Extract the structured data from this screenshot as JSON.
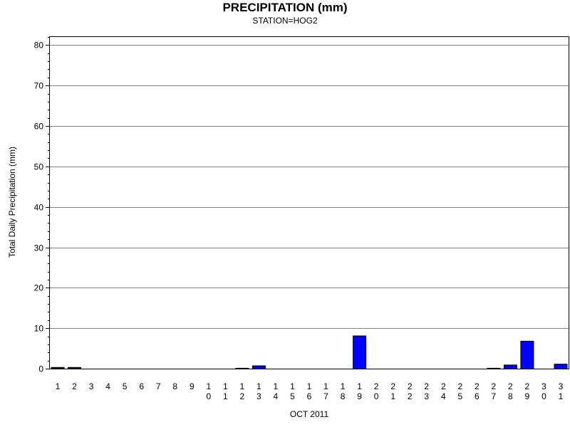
{
  "chart_data": {
    "type": "bar",
    "title": "PRECIPITATION (mm)",
    "subtitle": "STATION=HOG2",
    "xlabel": "OCT 2011",
    "ylabel": "Total Daily Precipitation (mm)",
    "ylim": [
      0,
      82
    ],
    "yticks": [
      0,
      10,
      20,
      30,
      40,
      50,
      60,
      70,
      80
    ],
    "grid": true,
    "bar_color": "#0000ff",
    "categories": [
      "1",
      "2",
      "3",
      "4",
      "5",
      "6",
      "7",
      "8",
      "9",
      "10",
      "11",
      "12",
      "13",
      "14",
      "15",
      "16",
      "17",
      "18",
      "19",
      "20",
      "21",
      "22",
      "23",
      "24",
      "25",
      "26",
      "27",
      "28",
      "29",
      "30",
      "31"
    ],
    "values": [
      0.3,
      0.3,
      0,
      0,
      0,
      0,
      0,
      0,
      0,
      0,
      0,
      0.1,
      0.7,
      0,
      0,
      0,
      0,
      0,
      8.1,
      0,
      0,
      0,
      0,
      0,
      0,
      0,
      0.1,
      0.9,
      6.8,
      0,
      1.1
    ]
  }
}
